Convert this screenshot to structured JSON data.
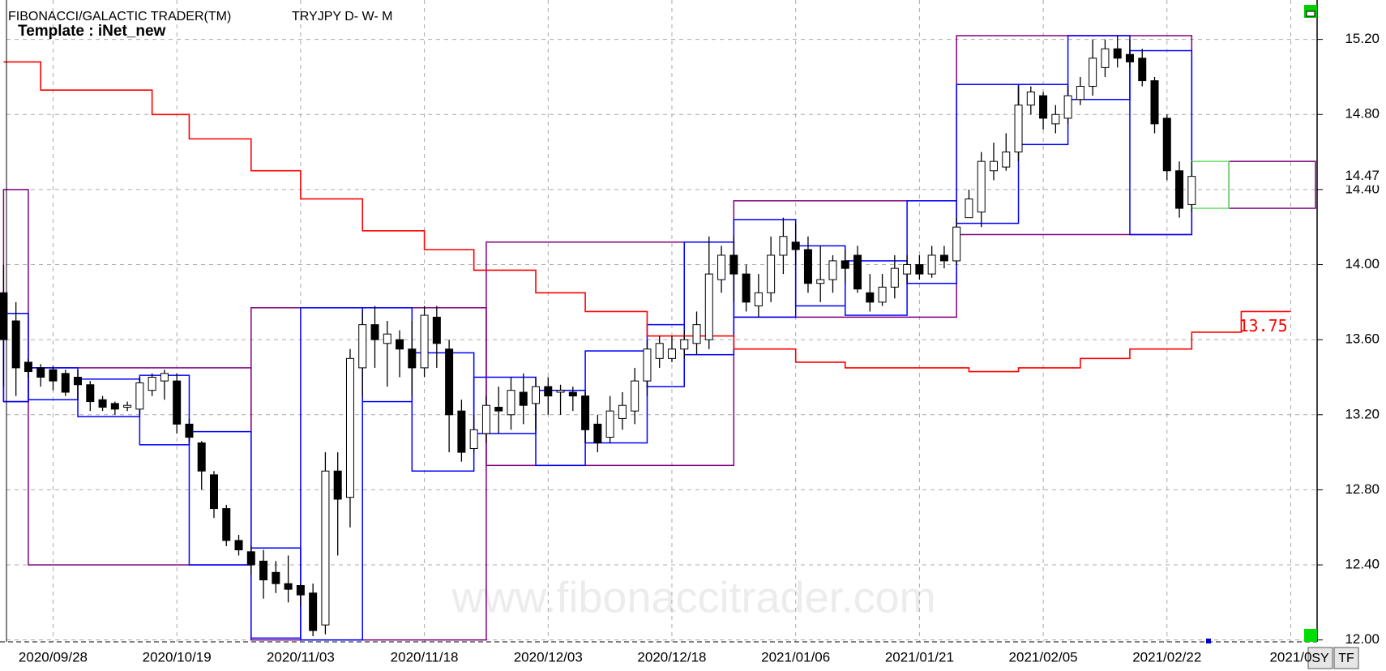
{
  "chart_data": {
    "type": "candlestick",
    "title": "FIBONACCI/GALACTIC TRADER(TM)",
    "subtitle": "TRYJPY D- W- M",
    "template": "Template : iNet_new",
    "watermark": "www.fibonaccitrader.com",
    "categories": [
      null,
      null,
      null,
      null,
      "2020/09/28",
      null,
      null,
      null,
      null,
      null,
      null,
      null,
      null,
      null,
      "2020/10/19",
      null,
      null,
      null,
      null,
      null,
      null,
      null,
      null,
      null,
      "2020/11/03",
      null,
      null,
      null,
      null,
      null,
      null,
      null,
      null,
      null,
      "2020/11/18",
      null,
      null,
      null,
      null,
      null,
      null,
      null,
      null,
      null,
      "2020/12/03",
      null,
      null,
      null,
      null,
      null,
      null,
      null,
      null,
      null,
      "2020/12/18",
      null,
      null,
      null,
      null,
      null,
      null,
      null,
      null,
      null,
      "2021/01/06",
      null,
      null,
      null,
      null,
      null,
      null,
      null,
      null,
      null,
      "2021/01/21",
      null,
      null,
      null,
      null,
      null,
      null,
      null,
      null,
      null,
      "2021/02/05",
      null,
      null,
      null,
      null,
      null,
      null,
      null,
      null,
      null,
      "2021/02/22",
      null,
      null,
      null,
      null,
      null,
      null,
      null,
      null,
      null,
      "2021/0",
      null,
      null
    ],
    "open": [
      13.85,
      13.7,
      13.48,
      13.45,
      13.44,
      13.42,
      13.4,
      13.36,
      13.28,
      13.26,
      13.24,
      13.23,
      13.33,
      13.38,
      13.38,
      13.15,
      13.05,
      12.88,
      12.7,
      12.53,
      12.47,
      12.42,
      12.36,
      12.3,
      12.29,
      12.25,
      12.08,
      12.9,
      12.76,
      13.45,
      13.68,
      13.58,
      13.6,
      13.55,
      13.45,
      13.72,
      13.55,
      13.22,
      13.02,
      13.1,
      13.24,
      13.2,
      13.32,
      13.26,
      13.35,
      13.32,
      13.32,
      13.3,
      13.15,
      13.08,
      13.18,
      13.22,
      13.38,
      13.5,
      13.5,
      13.55,
      13.58,
      13.6,
      13.92,
      14.05,
      13.95,
      13.78,
      13.85,
      14.05,
      14.12,
      14.08,
      13.9,
      13.92,
      14.02,
      14.05,
      13.85,
      13.8,
      13.88,
      13.95,
      14.0,
      13.95,
      14.05,
      14.02,
      14.25,
      14.28,
      14.5,
      14.52,
      14.6,
      14.85,
      14.9,
      14.75,
      14.78,
      14.88,
      14.95,
      15.05,
      15.15,
      15.12,
      15.1,
      14.98,
      14.78,
      14.5,
      14.32,
      null,
      null,
      null,
      null,
      null,
      null,
      null,
      null,
      null,
      null
    ],
    "high": [
      14.0,
      13.8,
      13.5,
      13.47,
      13.46,
      13.44,
      13.44,
      13.38,
      13.3,
      13.27,
      13.27,
      13.4,
      13.42,
      13.44,
      13.42,
      13.18,
      13.06,
      12.9,
      12.72,
      12.56,
      12.5,
      12.48,
      12.42,
      12.45,
      12.3,
      12.3,
      13.0,
      13.0,
      13.55,
      13.75,
      13.78,
      13.7,
      13.65,
      13.7,
      13.78,
      13.78,
      13.6,
      13.28,
      13.2,
      13.3,
      13.35,
      13.4,
      13.42,
      13.4,
      13.4,
      13.36,
      13.35,
      13.32,
      13.2,
      13.3,
      13.32,
      13.45,
      13.6,
      13.62,
      13.62,
      13.65,
      13.75,
      14.15,
      14.1,
      14.15,
      14.0,
      13.95,
      14.15,
      14.25,
      14.22,
      14.15,
      14.1,
      14.05,
      14.08,
      14.1,
      13.95,
      13.95,
      14.05,
      14.05,
      14.05,
      14.1,
      14.1,
      14.25,
      14.4,
      14.6,
      14.65,
      14.7,
      14.95,
      14.95,
      14.92,
      14.85,
      14.95,
      15.0,
      15.2,
      15.2,
      15.22,
      15.2,
      15.15,
      15.0,
      14.8,
      14.55,
      14.55,
      null,
      null,
      null,
      null,
      null,
      null,
      null,
      null,
      null,
      null
    ],
    "low": [
      13.35,
      13.3,
      13.4,
      13.35,
      13.33,
      13.3,
      13.28,
      13.22,
      13.22,
      13.2,
      13.22,
      13.2,
      13.3,
      13.28,
      13.1,
      13.05,
      12.8,
      12.65,
      12.5,
      12.45,
      12.35,
      12.22,
      12.25,
      12.2,
      12.18,
      12.02,
      12.03,
      12.45,
      12.6,
      13.3,
      13.45,
      13.35,
      13.4,
      13.3,
      13.4,
      13.45,
      13.0,
      12.95,
      13.0,
      13.05,
      13.1,
      13.12,
      13.15,
      13.12,
      13.2,
      13.2,
      13.22,
      13.05,
      13.0,
      13.05,
      13.12,
      13.15,
      13.3,
      13.45,
      13.48,
      13.5,
      13.52,
      13.55,
      13.85,
      13.8,
      13.75,
      13.72,
      13.8,
      13.95,
      14.0,
      13.85,
      13.8,
      13.85,
      13.9,
      13.85,
      13.75,
      13.78,
      13.82,
      13.9,
      13.92,
      13.93,
      13.98,
      14.0,
      14.25,
      14.2,
      14.45,
      14.5,
      14.55,
      14.8,
      14.72,
      14.7,
      14.75,
      14.85,
      14.9,
      15.0,
      15.05,
      15.05,
      14.95,
      14.7,
      14.45,
      14.25,
      14.28,
      null,
      null,
      null,
      null,
      null,
      null,
      null,
      null,
      null,
      null
    ],
    "close": [
      13.6,
      13.45,
      13.43,
      13.4,
      13.38,
      13.32,
      13.36,
      13.27,
      13.24,
      13.23,
      13.25,
      13.37,
      13.4,
      13.42,
      13.15,
      13.08,
      12.9,
      12.7,
      12.53,
      12.48,
      12.4,
      12.32,
      12.3,
      12.27,
      12.24,
      12.05,
      12.9,
      12.75,
      13.5,
      13.68,
      13.6,
      13.63,
      13.55,
      13.45,
      13.73,
      13.58,
      13.2,
      13.0,
      13.12,
      13.25,
      13.22,
      13.33,
      13.25,
      13.35,
      13.3,
      13.33,
      13.3,
      13.12,
      13.05,
      13.22,
      13.25,
      13.38,
      13.55,
      13.58,
      13.55,
      13.6,
      13.68,
      13.95,
      14.05,
      13.95,
      13.8,
      13.85,
      14.05,
      14.15,
      14.08,
      13.9,
      13.92,
      14.02,
      13.98,
      13.87,
      13.8,
      13.88,
      13.98,
      14.0,
      13.95,
      14.05,
      14.02,
      14.2,
      14.35,
      14.55,
      14.55,
      14.6,
      14.85,
      14.92,
      14.78,
      14.8,
      14.9,
      14.95,
      15.1,
      15.15,
      15.1,
      15.08,
      14.98,
      14.75,
      14.5,
      14.3,
      14.47,
      null,
      null,
      null,
      null,
      null,
      null,
      null,
      null,
      null,
      null
    ],
    "last_label": "14.47",
    "step_line": {
      "color": "#ff0000",
      "x": [
        0,
        3,
        12,
        15,
        20,
        24,
        29,
        34,
        38,
        43,
        47,
        52,
        59,
        64,
        68,
        78,
        82,
        87,
        91,
        96,
        100,
        104
      ],
      "values": [
        15.08,
        14.93,
        14.8,
        14.67,
        14.5,
        14.35,
        14.18,
        14.08,
        13.97,
        13.85,
        13.75,
        13.62,
        13.55,
        13.48,
        13.45,
        13.43,
        13.45,
        13.5,
        13.55,
        13.64,
        13.75,
        13.75
      ],
      "end_label": "13.75"
    },
    "monthly_boxes": {
      "color": "#800080",
      "boxes": [
        {
          "from": 0,
          "to": 2,
          "high": 14.4,
          "low": 13.27
        },
        {
          "from": 2,
          "to": 20,
          "high": 13.45,
          "low": 12.4
        },
        {
          "from": 20,
          "to": 39,
          "high": 13.77,
          "low": 12.0
        },
        {
          "from": 39,
          "to": 59,
          "high": 14.12,
          "low": 12.93
        },
        {
          "from": 59,
          "to": 77,
          "high": 14.34,
          "low": 13.72
        },
        {
          "from": 77,
          "to": 96,
          "high": 15.22,
          "low": 14.16
        },
        {
          "from": 99,
          "to": 106,
          "high": 14.55,
          "low": 14.3
        }
      ]
    },
    "weekly_boxes": {
      "color": "#0000ff",
      "boxes": [
        {
          "from": 0,
          "to": 2,
          "high": 13.74,
          "low": 13.27
        },
        {
          "from": 2,
          "to": 6,
          "high": 13.45,
          "low": 13.28
        },
        {
          "from": 6,
          "to": 11,
          "high": 13.39,
          "low": 13.19
        },
        {
          "from": 11,
          "to": 15,
          "high": 13.41,
          "low": 13.04
        },
        {
          "from": 15,
          "to": 20,
          "high": 13.11,
          "low": 12.4
        },
        {
          "from": 20,
          "to": 24,
          "high": 12.49,
          "low": 12.01
        },
        {
          "from": 24,
          "to": 29,
          "high": 13.77,
          "low": 12.0
        },
        {
          "from": 29,
          "to": 33,
          "high": 13.77,
          "low": 13.27
        },
        {
          "from": 33,
          "to": 38,
          "high": 13.53,
          "low": 12.9
        },
        {
          "from": 38,
          "to": 43,
          "high": 13.4,
          "low": 13.1
        },
        {
          "from": 43,
          "to": 47,
          "high": 13.33,
          "low": 12.93
        },
        {
          "from": 47,
          "to": 52,
          "high": 13.54,
          "low": 13.05
        },
        {
          "from": 52,
          "to": 55,
          "high": 13.68,
          "low": 13.35
        },
        {
          "from": 55,
          "to": 59,
          "high": 14.12,
          "low": 13.52
        },
        {
          "from": 59,
          "to": 64,
          "high": 14.24,
          "low": 13.72
        },
        {
          "from": 64,
          "to": 68,
          "high": 14.1,
          "low": 13.78
        },
        {
          "from": 68,
          "to": 73,
          "high": 14.02,
          "low": 13.73
        },
        {
          "from": 73,
          "to": 77,
          "high": 14.34,
          "low": 13.9
        },
        {
          "from": 77,
          "to": 82,
          "high": 14.96,
          "low": 14.22
        },
        {
          "from": 82,
          "to": 86,
          "high": 14.96,
          "low": 14.64
        },
        {
          "from": 86,
          "to": 91,
          "high": 15.22,
          "low": 14.88
        },
        {
          "from": 91,
          "to": 96,
          "high": 15.14,
          "low": 14.16
        }
      ]
    },
    "current_box": {
      "color": "#66dd66",
      "from": 96,
      "to": 99,
      "high": 14.55,
      "low": 14.3
    },
    "ylim": [
      11.99,
      15.41
    ],
    "yticks": [
      {
        "value": 12,
        "label": "12.00"
      },
      {
        "value": 12.4,
        "label": "12.40"
      },
      {
        "value": 12.8,
        "label": "12.80"
      },
      {
        "value": 13.2,
        "label": "13.20"
      },
      {
        "value": 13.6,
        "label": "13.60"
      },
      {
        "value": 14,
        "label": "14.00"
      },
      {
        "value": 14.4,
        "label": "14.40"
      },
      {
        "value": 14.8,
        "label": "14.80"
      },
      {
        "value": 15.2,
        "label": "15.20"
      }
    ],
    "grid": true
  },
  "ui": {
    "buttons": [
      "SY",
      "TF"
    ]
  }
}
